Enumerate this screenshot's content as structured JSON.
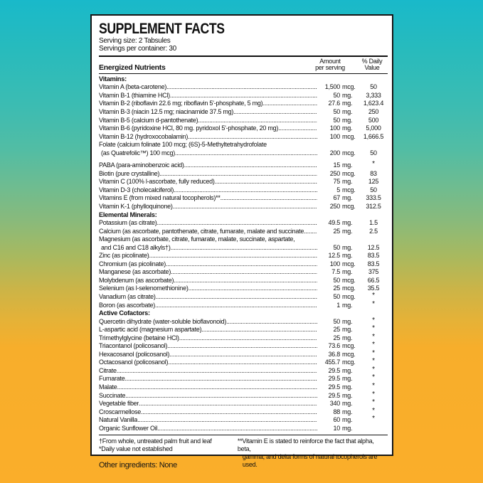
{
  "background": {
    "top_color": "#19b9ca",
    "bottom_color": "#fbae2a"
  },
  "label": {
    "title": "SUPPLEMENT FACTS",
    "serving_size": "Serving size: 2 Tabsules",
    "servings_per_container": "Servings per container: 30",
    "columns": {
      "nutrients": "Energized Nutrients",
      "amount_line1": "Amount",
      "amount_line2": "per serving",
      "dv_line1": "% Daily",
      "dv_line2": "Value"
    },
    "sections": [
      {
        "heading": "Vitamins:",
        "rows": [
          {
            "name": "Vitamin A (beta-carotene)",
            "amount": "1,500",
            "unit": "mcg.",
            "dv": "50"
          },
          {
            "name": "Vitamin B-1 (thiamine HCl)",
            "amount": "50",
            "unit": "mg.",
            "dv": "3,333"
          },
          {
            "name": "Vitamin B-2 (riboflavin 22.6 mg; riboflavin 5'-phosphate, 5 mg)",
            "amount": "27.6",
            "unit": "mg.",
            "dv": "1,623.4"
          },
          {
            "name": "Vitamin B-3 (niacin 12.5 mg; niacinamide 37.5 mg)",
            "amount": "50",
            "unit": "mg.",
            "dv": "250"
          },
          {
            "name": "Vitamin B-5 (calcium d-pantothenate)",
            "amount": "50",
            "unit": "mg.",
            "dv": "500"
          },
          {
            "name": "Vitamin B-6 (pyridoxine HCl, 80 mg. pyridoxol 5'-phosphate, 20 mg)",
            "amount": "100",
            "unit": "mg.",
            "dv": "5,000"
          },
          {
            "name": "Vitamin B-12 (hydroxocobalamin)",
            "amount": "100",
            "unit": "mcg.",
            "dv": "1,666.5"
          },
          {
            "pre": "Folate (calcium folinate 100 mcg; (6S)-5-Methyltetrahydrofolate",
            "name": "(as Quatrefolic™) 100 mcg)",
            "amount": "200",
            "unit": "mcg.",
            "dv": "50"
          },
          {
            "name": "PABA (para-aminobenzoic acid)",
            "amount": "15",
            "unit": "mg.",
            "dv": "*",
            "gap": true
          },
          {
            "name": "Biotin (pure crystalline)",
            "amount": "250",
            "unit": "mcg.",
            "dv": "83"
          },
          {
            "name": "Vitamin C (100% l-ascorbate, fully reduced)",
            "amount": "75",
            "unit": "mg.",
            "dv": "125"
          },
          {
            "name": "Vitamin D-3 (cholecalciferol)",
            "amount": "5",
            "unit": "mcg.",
            "dv": "50"
          },
          {
            "name": "Vitamins E (from mixed natural tocopherols)**",
            "amount": "67",
            "unit": "mg.",
            "dv": "333.5"
          },
          {
            "name": "Vitamin K-1 (phylloquinone)",
            "amount": "250",
            "unit": "mcg.",
            "dv": "312.5"
          }
        ]
      },
      {
        "heading": "Elemental Minerals:",
        "rows": [
          {
            "name": "Potassium (as citrate)",
            "amount": "49.5",
            "unit": "mg.",
            "dv": "1.5"
          },
          {
            "name": "Calcium (as ascorbate, pantothenate, citrate, fumarate, malate and succinate",
            "amount": "25",
            "unit": "mg.",
            "dv": "2.5"
          },
          {
            "pre": "Magnesium (as ascorbate, citrate, fumarate, malate, succinate, aspartate,",
            "name": "and C16 and C18 alkyls†)",
            "amount": "50",
            "unit": "mg.",
            "dv": "12.5"
          },
          {
            "name": "Zinc (as picolinate)",
            "amount": "12.5",
            "unit": "mg.",
            "dv": "83.5"
          },
          {
            "name": "Chromium (as picolinate)",
            "amount": "100",
            "unit": "mcg.",
            "dv": "83.5"
          },
          {
            "name": "Manganese (as ascorbate)",
            "amount": "7.5",
            "unit": "mg.",
            "dv": "375"
          },
          {
            "name": "Molybdenum (as ascorbate)",
            "amount": "50",
            "unit": "mcg.",
            "dv": "66.5"
          },
          {
            "name": "Selenium (as l-selenomethionine)",
            "amount": "25",
            "unit": "mcg.",
            "dv": "35.5"
          },
          {
            "name": "Vanadium (as citrate)",
            "amount": "50",
            "unit": "mcg.",
            "dv": "*"
          },
          {
            "name": "Boron (as ascorbate)",
            "amount": "1",
            "unit": "mg.",
            "dv": "*"
          }
        ]
      },
      {
        "heading": "Active Cofactors:",
        "rows": [
          {
            "name": "Quercetin dihydrate (water-soluble bioflavonoid)",
            "amount": "50",
            "unit": "mg.",
            "dv": "*"
          },
          {
            "name": "L-aspartic acid (magnesium aspartate)",
            "amount": "25",
            "unit": "mg.",
            "dv": "*"
          },
          {
            "name": "Trimethylglycine (betaine HCl)",
            "amount": "25",
            "unit": "mg.",
            "dv": "*"
          },
          {
            "name": "Triacontanol (policosanol)",
            "amount": "73.6",
            "unit": "mcg.",
            "dv": "*"
          },
          {
            "name": "Hexacosanol (policosanol)",
            "amount": "36.8",
            "unit": "mcg.",
            "dv": "*"
          },
          {
            "name": "Octacosanol (policosanol)",
            "amount": "455.7",
            "unit": "mcg.",
            "dv": "*"
          },
          {
            "name": "Citrate",
            "amount": "29.5",
            "unit": "mg.",
            "dv": "*"
          },
          {
            "name": "Fumarate",
            "amount": "29.5",
            "unit": "mg.",
            "dv": "*"
          },
          {
            "name": "Malate",
            "amount": "29.5",
            "unit": "mg.",
            "dv": "*"
          },
          {
            "name": "Succinate",
            "amount": "29.5",
            "unit": "mg.",
            "dv": "*"
          },
          {
            "name": "Vegetable fiber",
            "amount": "340",
            "unit": "mg.",
            "dv": "*"
          },
          {
            "name": "Croscarmellose",
            "amount": "88",
            "unit": "mg.",
            "dv": "*"
          },
          {
            "name": "Natural Vanilla",
            "amount": "60",
            "unit": "mg.",
            "dv": "*"
          },
          {
            "name": "Organic Sunflower Oil",
            "amount": "10",
            "unit": "mg.",
            "dv": ""
          }
        ]
      }
    ],
    "footnotes": {
      "left_line1": "†From whole, untreated palm fruit and leaf",
      "left_line2": "*Daily value not established",
      "right_line1": "**Vitamin E is stated to reinforce the fact that alpha, beta,",
      "right_line2": "gamma, and delta forms of natural tocopherols are used."
    }
  },
  "other_ingredients": "Other ingredients: None"
}
